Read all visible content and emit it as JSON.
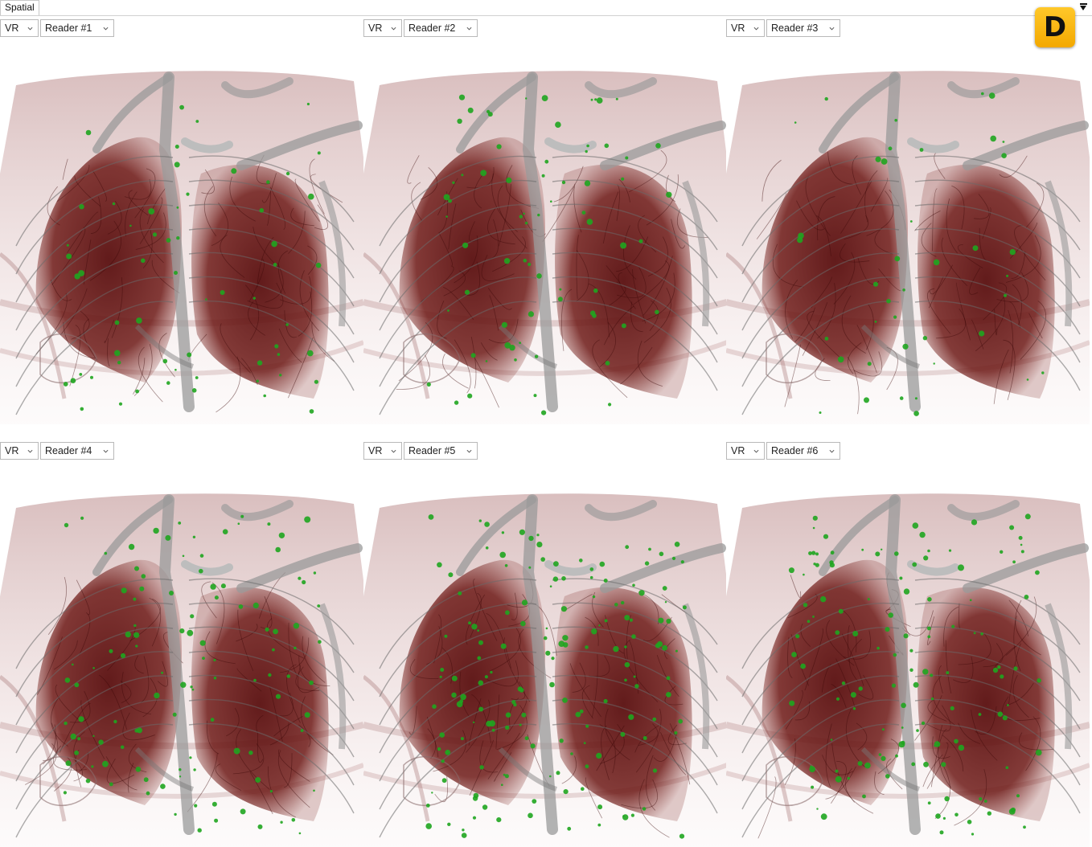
{
  "tab": {
    "label": "Spatial",
    "menu_icon": "dropdown-arrow-icon"
  },
  "badge": {
    "letter": "D",
    "color": "#f5b400"
  },
  "panels": [
    {
      "mode": "VR",
      "reader": "Reader #1"
    },
    {
      "mode": "VR",
      "reader": "Reader #2"
    },
    {
      "mode": "VR",
      "reader": "Reader #3"
    },
    {
      "mode": "VR",
      "reader": "Reader #4"
    },
    {
      "mode": "VR",
      "reader": "Reader #5"
    },
    {
      "mode": "VR",
      "reader": "Reader #6"
    }
  ],
  "colors": {
    "lung": "#6e1a17",
    "bone": "#9a9a9a",
    "marker": "#1fa51f",
    "soft_tissue": "#c9a3a3"
  }
}
